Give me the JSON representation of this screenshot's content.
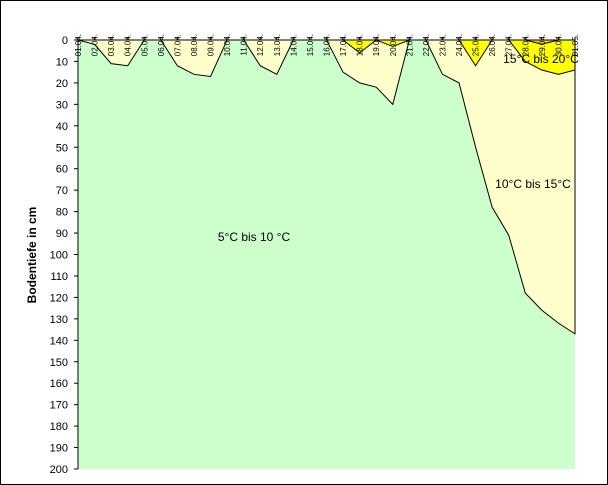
{
  "chart_data": {
    "type": "area",
    "title": "",
    "xlabel": "",
    "ylabel": "Bodentiefe in cm",
    "ylim": [
      0,
      200
    ],
    "y_inverted": true,
    "y_ticks": [
      0,
      10,
      20,
      30,
      40,
      50,
      60,
      70,
      80,
      90,
      100,
      110,
      120,
      130,
      140,
      150,
      160,
      170,
      180,
      190,
      200
    ],
    "categories": [
      "01.04.",
      "02.04.",
      "03.04.",
      "04.04.",
      "05.04.",
      "06.04.",
      "07.04.",
      "08.04.",
      "09.04.",
      "10.04.",
      "11.04.",
      "12.04.",
      "13.04.",
      "14.04.",
      "15.04.",
      "16.04.",
      "17.04.",
      "18.04.",
      "19.04.",
      "20.04.",
      "21.04.",
      "22.04.",
      "23.04.",
      "24.04.",
      "25.04.",
      "26.04.",
      "27.04.",
      "28.04.",
      "29.04.",
      "30.04.",
      "01.05."
    ],
    "series": [
      {
        "name": "5°C bis 10 °C",
        "color": "#ccffcc",
        "boundary": "isotherm 10°C depth",
        "values": [
          0,
          2,
          11,
          12,
          0,
          0,
          12,
          16,
          17,
          0,
          0,
          12,
          16,
          0,
          0,
          0,
          15,
          20,
          22,
          30,
          0,
          0,
          16,
          20,
          50,
          78,
          91,
          118,
          126,
          132,
          137
        ]
      },
      {
        "name": "10°C bis 15°C",
        "color": "#ffffcc",
        "boundary": "isotherm 15°C depth",
        "values": [
          0,
          0,
          0,
          0,
          0,
          0,
          0,
          0,
          0,
          0,
          0,
          0,
          0,
          0,
          0,
          0,
          0,
          6,
          0,
          3,
          0,
          0,
          0,
          0,
          12,
          0,
          0,
          10,
          14,
          16,
          14
        ]
      },
      {
        "name": "15°C bis 20°C",
        "color": "#ffff00",
        "boundary": "isotherm 20°C depth",
        "values": [
          0,
          0,
          0,
          0,
          0,
          0,
          0,
          0,
          0,
          0,
          0,
          0,
          0,
          0,
          0,
          0,
          0,
          0,
          0,
          0,
          0,
          0,
          0,
          0,
          0,
          0,
          0,
          0,
          2,
          0,
          0
        ]
      }
    ],
    "grid": false,
    "legend": "none (labels placed inside zones)"
  },
  "labels": {
    "ylabel": "Bodentiefe in cm",
    "zone_low": "5°C bis 10 °C",
    "zone_mid": "10°C bis 15°C",
    "zone_high": "15°C bis 20°C"
  }
}
